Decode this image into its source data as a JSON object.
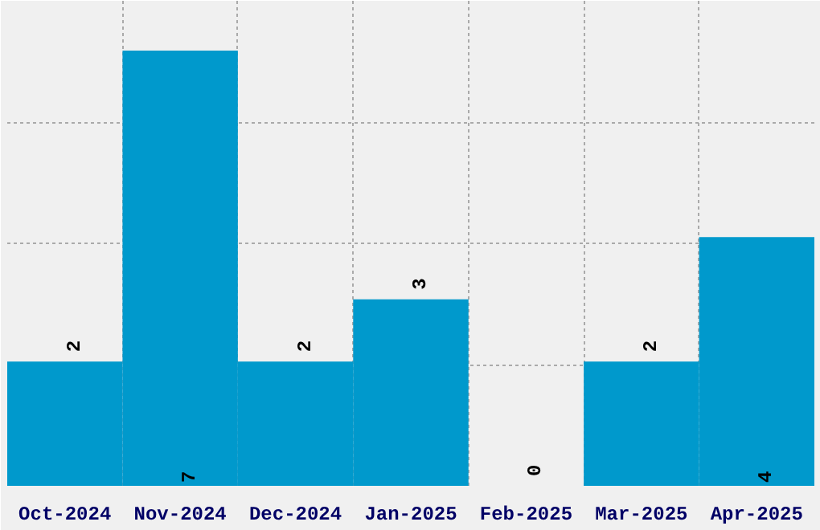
{
  "chart_data": {
    "type": "bar",
    "categories": [
      "Oct-2024",
      "Nov-2024",
      "Dec-2024",
      "Jan-2025",
      "Feb-2025",
      "Mar-2025",
      "Apr-2025"
    ],
    "values": [
      2,
      7,
      2,
      3,
      0,
      2,
      4
    ],
    "color": "#0099cc",
    "data_labels": true,
    "ylim": [
      0,
      7.8
    ],
    "tick_labels": "x",
    "grid": true
  }
}
